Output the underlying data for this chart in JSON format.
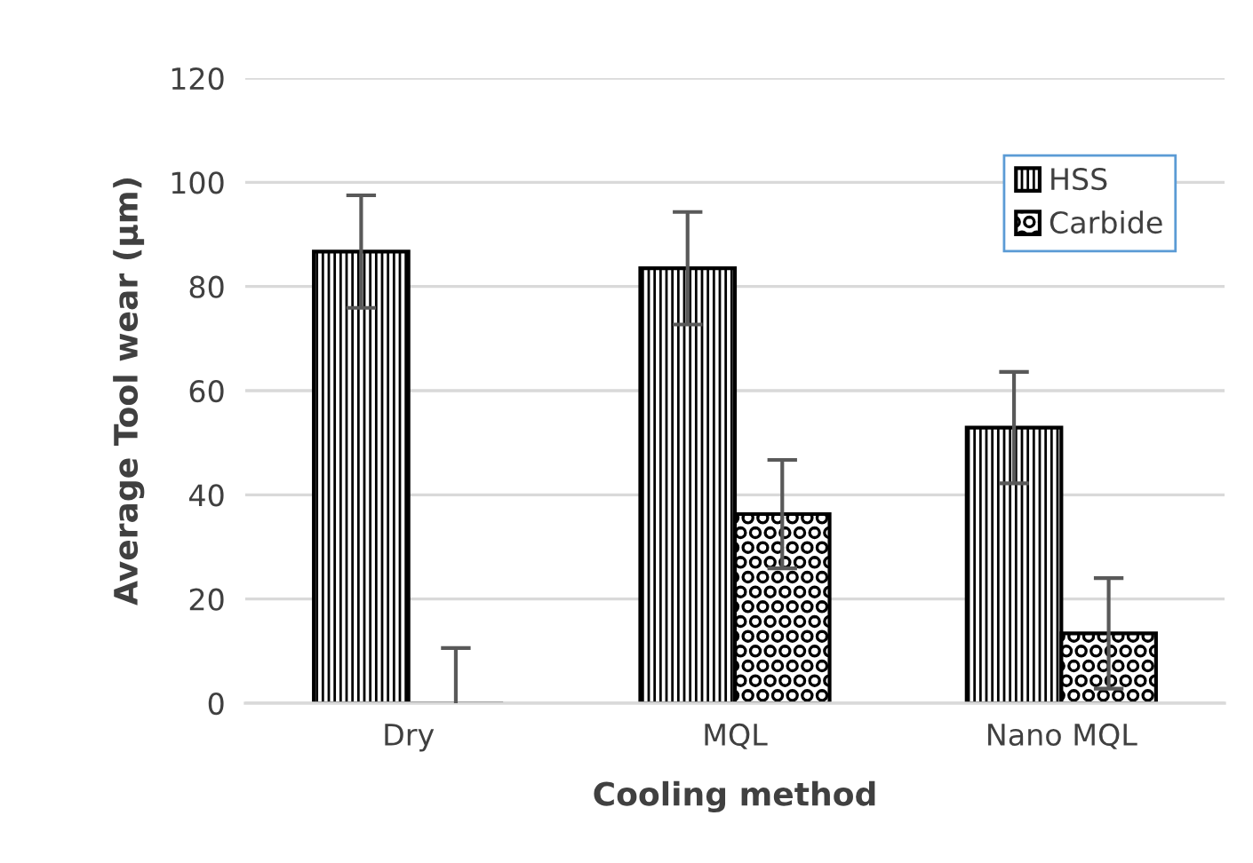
{
  "chart_data": {
    "type": "bar",
    "xlabel": "Cooling method",
    "ylabel": "Average Tool wear (µm)",
    "categories": [
      "Dry",
      "MQL",
      "Nano MQL"
    ],
    "series": [
      {
        "name": "HSS",
        "color": "#000000",
        "values": [
          86.7,
          83.5,
          52.9
        ],
        "errors": [
          10.8,
          10.8,
          10.7
        ]
      },
      {
        "name": "Carbide",
        "color": "#000000",
        "values": [
          0,
          36.3,
          13.4
        ],
        "errors": [
          10.6,
          10.4,
          10.6
        ]
      }
    ],
    "ylim": [
      0,
      120
    ],
    "yticks": [
      0,
      20,
      40,
      60,
      80,
      100,
      120
    ],
    "grid": "y",
    "legend": "top right"
  }
}
